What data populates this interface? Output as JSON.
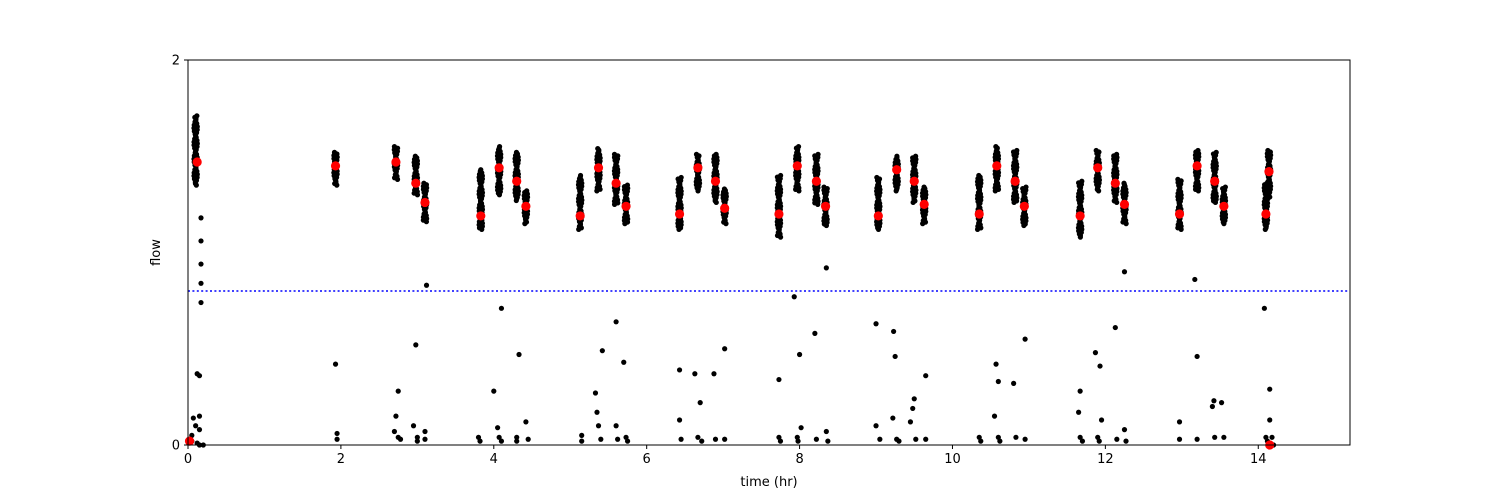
{
  "chart_data": {
    "type": "scatter",
    "title": "",
    "xlabel": "time (hr)",
    "ylabel": "flow",
    "xlim": [
      0,
      15.2
    ],
    "ylim": [
      0,
      2
    ],
    "xticks": [
      0,
      2,
      4,
      6,
      8,
      10,
      12,
      14
    ],
    "yticks": [
      0,
      2
    ],
    "xtick_labels": [
      "0",
      "2",
      "4",
      "6",
      "8",
      "10",
      "12",
      "14"
    ],
    "ytick_labels": [
      "0",
      "2"
    ],
    "grid": false,
    "legend": "none",
    "threshold": {
      "y": 0.8,
      "color": "#0000ff",
      "style": "dotted"
    },
    "clusters": [
      {
        "x": 0.1,
        "y_min": 1.35,
        "y_max": 1.71
      },
      {
        "x": 1.93,
        "y_min": 1.35,
        "y_max": 1.52
      },
      {
        "x": 2.72,
        "y_min": 1.38,
        "y_max": 1.55
      },
      {
        "x": 2.98,
        "y_min": 1.3,
        "y_max": 1.5
      },
      {
        "x": 3.1,
        "y_min": 1.16,
        "y_max": 1.36
      },
      {
        "x": 3.83,
        "y_min": 1.12,
        "y_max": 1.43
      },
      {
        "x": 4.07,
        "y_min": 1.3,
        "y_max": 1.55
      },
      {
        "x": 4.3,
        "y_min": 1.27,
        "y_max": 1.52
      },
      {
        "x": 4.42,
        "y_min": 1.15,
        "y_max": 1.32
      },
      {
        "x": 5.13,
        "y_min": 1.12,
        "y_max": 1.4
      },
      {
        "x": 5.37,
        "y_min": 1.32,
        "y_max": 1.54
      },
      {
        "x": 5.6,
        "y_min": 1.25,
        "y_max": 1.51
      },
      {
        "x": 5.73,
        "y_min": 1.15,
        "y_max": 1.35
      },
      {
        "x": 6.43,
        "y_min": 1.12,
        "y_max": 1.39
      },
      {
        "x": 6.67,
        "y_min": 1.32,
        "y_max": 1.51
      },
      {
        "x": 6.9,
        "y_min": 1.26,
        "y_max": 1.51
      },
      {
        "x": 7.02,
        "y_min": 1.15,
        "y_max": 1.33
      },
      {
        "x": 7.73,
        "y_min": 1.08,
        "y_max": 1.4
      },
      {
        "x": 7.97,
        "y_min": 1.32,
        "y_max": 1.55
      },
      {
        "x": 8.22,
        "y_min": 1.25,
        "y_max": 1.51
      },
      {
        "x": 8.34,
        "y_min": 1.14,
        "y_max": 1.34
      },
      {
        "x": 9.03,
        "y_min": 1.12,
        "y_max": 1.39
      },
      {
        "x": 9.27,
        "y_min": 1.32,
        "y_max": 1.5
      },
      {
        "x": 9.5,
        "y_min": 1.26,
        "y_max": 1.5
      },
      {
        "x": 9.63,
        "y_min": 1.15,
        "y_max": 1.34
      },
      {
        "x": 10.35,
        "y_min": 1.12,
        "y_max": 1.4
      },
      {
        "x": 10.58,
        "y_min": 1.32,
        "y_max": 1.55
      },
      {
        "x": 10.82,
        "y_min": 1.26,
        "y_max": 1.53
      },
      {
        "x": 10.94,
        "y_min": 1.14,
        "y_max": 1.34
      },
      {
        "x": 11.67,
        "y_min": 1.08,
        "y_max": 1.37
      },
      {
        "x": 11.9,
        "y_min": 1.32,
        "y_max": 1.53
      },
      {
        "x": 12.13,
        "y_min": 1.26,
        "y_max": 1.51
      },
      {
        "x": 12.25,
        "y_min": 1.15,
        "y_max": 1.36
      },
      {
        "x": 12.97,
        "y_min": 1.12,
        "y_max": 1.38
      },
      {
        "x": 13.2,
        "y_min": 1.32,
        "y_max": 1.53
      },
      {
        "x": 13.43,
        "y_min": 1.26,
        "y_max": 1.52
      },
      {
        "x": 13.55,
        "y_min": 1.15,
        "y_max": 1.34
      },
      {
        "x": 14.1,
        "y_min": 1.12,
        "y_max": 1.36
      },
      {
        "x": 14.14,
        "y_min": 1.28,
        "y_max": 1.53
      }
    ],
    "series": [
      {
        "color": "#000000",
        "marker": "small-circle",
        "points": [
          [
            0.17,
            1.18
          ],
          [
            0.17,
            1.06
          ],
          [
            0.17,
            0.94
          ],
          [
            0.17,
            0.84
          ],
          [
            0.17,
            0.74
          ],
          [
            0.12,
            0.37
          ],
          [
            0.15,
            0.36
          ],
          [
            0.07,
            0.14
          ],
          [
            0.15,
            0.15
          ],
          [
            0.1,
            0.1
          ],
          [
            0.15,
            0.08
          ],
          [
            0.05,
            0.05
          ],
          [
            0.05,
            0.02
          ],
          [
            0.12,
            0.01
          ],
          [
            0.15,
            0.0
          ],
          [
            0.2,
            0.0
          ],
          [
            1.93,
            0.42
          ],
          [
            1.95,
            0.06
          ],
          [
            1.95,
            0.03
          ],
          [
            2.7,
            0.07
          ],
          [
            2.72,
            0.15
          ],
          [
            2.75,
            0.28
          ],
          [
            2.75,
            0.04
          ],
          [
            2.78,
            0.03
          ],
          [
            2.98,
            0.52
          ],
          [
            2.95,
            0.1
          ],
          [
            3.0,
            0.04
          ],
          [
            3.0,
            0.02
          ],
          [
            3.1,
            0.07
          ],
          [
            3.1,
            0.03
          ],
          [
            3.12,
            0.83
          ],
          [
            3.8,
            0.04
          ],
          [
            3.82,
            0.02
          ],
          [
            4.0,
            0.28
          ],
          [
            4.05,
            0.09
          ],
          [
            4.1,
            0.71
          ],
          [
            4.07,
            0.04
          ],
          [
            4.1,
            0.02
          ],
          [
            4.33,
            0.47
          ],
          [
            4.3,
            0.04
          ],
          [
            4.3,
            0.02
          ],
          [
            4.42,
            0.12
          ],
          [
            4.45,
            0.03
          ],
          [
            5.15,
            0.05
          ],
          [
            5.15,
            0.02
          ],
          [
            5.33,
            0.27
          ],
          [
            5.35,
            0.17
          ],
          [
            5.37,
            0.1
          ],
          [
            5.4,
            0.03
          ],
          [
            5.42,
            0.49
          ],
          [
            5.6,
            0.64
          ],
          [
            5.6,
            0.1
          ],
          [
            5.62,
            0.03
          ],
          [
            5.7,
            0.43
          ],
          [
            5.73,
            0.04
          ],
          [
            5.75,
            0.02
          ],
          [
            6.43,
            0.39
          ],
          [
            6.43,
            0.13
          ],
          [
            6.45,
            0.03
          ],
          [
            6.63,
            0.37
          ],
          [
            6.67,
            0.04
          ],
          [
            6.7,
            0.22
          ],
          [
            6.72,
            0.02
          ],
          [
            6.88,
            0.37
          ],
          [
            6.9,
            0.03
          ],
          [
            7.02,
            0.5
          ],
          [
            7.02,
            0.03
          ],
          [
            7.73,
            0.34
          ],
          [
            7.73,
            0.04
          ],
          [
            7.75,
            0.02
          ],
          [
            7.93,
            0.77
          ],
          [
            7.97,
            0.04
          ],
          [
            7.98,
            0.02
          ],
          [
            8.0,
            0.47
          ],
          [
            8.02,
            0.09
          ],
          [
            8.2,
            0.58
          ],
          [
            8.22,
            0.03
          ],
          [
            8.35,
            0.92
          ],
          [
            8.35,
            0.07
          ],
          [
            8.37,
            0.02
          ],
          [
            9.0,
            0.63
          ],
          [
            9.0,
            0.1
          ],
          [
            9.05,
            0.03
          ],
          [
            9.22,
            0.14
          ],
          [
            9.23,
            0.59
          ],
          [
            9.25,
            0.46
          ],
          [
            9.27,
            0.03
          ],
          [
            9.3,
            0.02
          ],
          [
            9.45,
            0.12
          ],
          [
            9.48,
            0.19
          ],
          [
            9.5,
            0.24
          ],
          [
            9.52,
            0.03
          ],
          [
            9.65,
            0.36
          ],
          [
            9.65,
            0.03
          ],
          [
            10.35,
            0.04
          ],
          [
            10.37,
            0.02
          ],
          [
            10.55,
            0.15
          ],
          [
            10.57,
            0.42
          ],
          [
            10.6,
            0.33
          ],
          [
            10.6,
            0.04
          ],
          [
            10.62,
            0.02
          ],
          [
            10.8,
            0.32
          ],
          [
            10.83,
            0.04
          ],
          [
            10.95,
            0.55
          ],
          [
            10.95,
            0.03
          ],
          [
            11.65,
            0.17
          ],
          [
            11.67,
            0.28
          ],
          [
            11.67,
            0.04
          ],
          [
            11.7,
            0.02
          ],
          [
            11.87,
            0.48
          ],
          [
            11.9,
            0.04
          ],
          [
            11.92,
            0.02
          ],
          [
            11.93,
            0.41
          ],
          [
            11.95,
            0.13
          ],
          [
            12.13,
            0.61
          ],
          [
            12.15,
            0.03
          ],
          [
            12.25,
            0.9
          ],
          [
            12.25,
            0.08
          ],
          [
            12.27,
            0.02
          ],
          [
            12.97,
            0.12
          ],
          [
            12.97,
            0.03
          ],
          [
            13.17,
            0.86
          ],
          [
            13.2,
            0.46
          ],
          [
            13.2,
            0.03
          ],
          [
            13.4,
            0.2
          ],
          [
            13.42,
            0.23
          ],
          [
            13.43,
            0.04
          ],
          [
            13.52,
            0.22
          ],
          [
            13.55,
            0.04
          ],
          [
            14.08,
            0.71
          ],
          [
            14.1,
            0.04
          ],
          [
            14.12,
            0.02
          ],
          [
            14.15,
            0.29
          ],
          [
            14.15,
            0.13
          ],
          [
            14.18,
            0.04
          ],
          [
            14.2,
            0.0
          ]
        ]
      },
      {
        "color": "#ff0000",
        "marker": "large-circle",
        "points": [
          [
            0.12,
            1.47
          ],
          [
            1.93,
            1.45
          ],
          [
            2.72,
            1.47
          ],
          [
            2.98,
            1.36
          ],
          [
            3.1,
            1.26
          ],
          [
            3.83,
            1.19
          ],
          [
            4.07,
            1.44
          ],
          [
            4.3,
            1.37
          ],
          [
            4.42,
            1.24
          ],
          [
            5.13,
            1.19
          ],
          [
            5.37,
            1.44
          ],
          [
            5.6,
            1.36
          ],
          [
            5.73,
            1.24
          ],
          [
            6.43,
            1.2
          ],
          [
            6.67,
            1.44
          ],
          [
            6.9,
            1.37
          ],
          [
            7.02,
            1.23
          ],
          [
            7.73,
            1.2
          ],
          [
            7.97,
            1.45
          ],
          [
            8.22,
            1.37
          ],
          [
            8.34,
            1.24
          ],
          [
            9.03,
            1.19
          ],
          [
            9.27,
            1.43
          ],
          [
            9.5,
            1.37
          ],
          [
            9.63,
            1.25
          ],
          [
            10.35,
            1.2
          ],
          [
            10.58,
            1.45
          ],
          [
            10.82,
            1.37
          ],
          [
            10.94,
            1.24
          ],
          [
            11.67,
            1.19
          ],
          [
            11.9,
            1.44
          ],
          [
            12.13,
            1.36
          ],
          [
            12.25,
            1.25
          ],
          [
            12.97,
            1.2
          ],
          [
            13.2,
            1.45
          ],
          [
            13.43,
            1.37
          ],
          [
            13.55,
            1.24
          ],
          [
            14.1,
            1.2
          ],
          [
            14.14,
            1.42
          ],
          [
            0.02,
            0.02
          ],
          [
            14.15,
            0.0
          ]
        ]
      }
    ]
  }
}
